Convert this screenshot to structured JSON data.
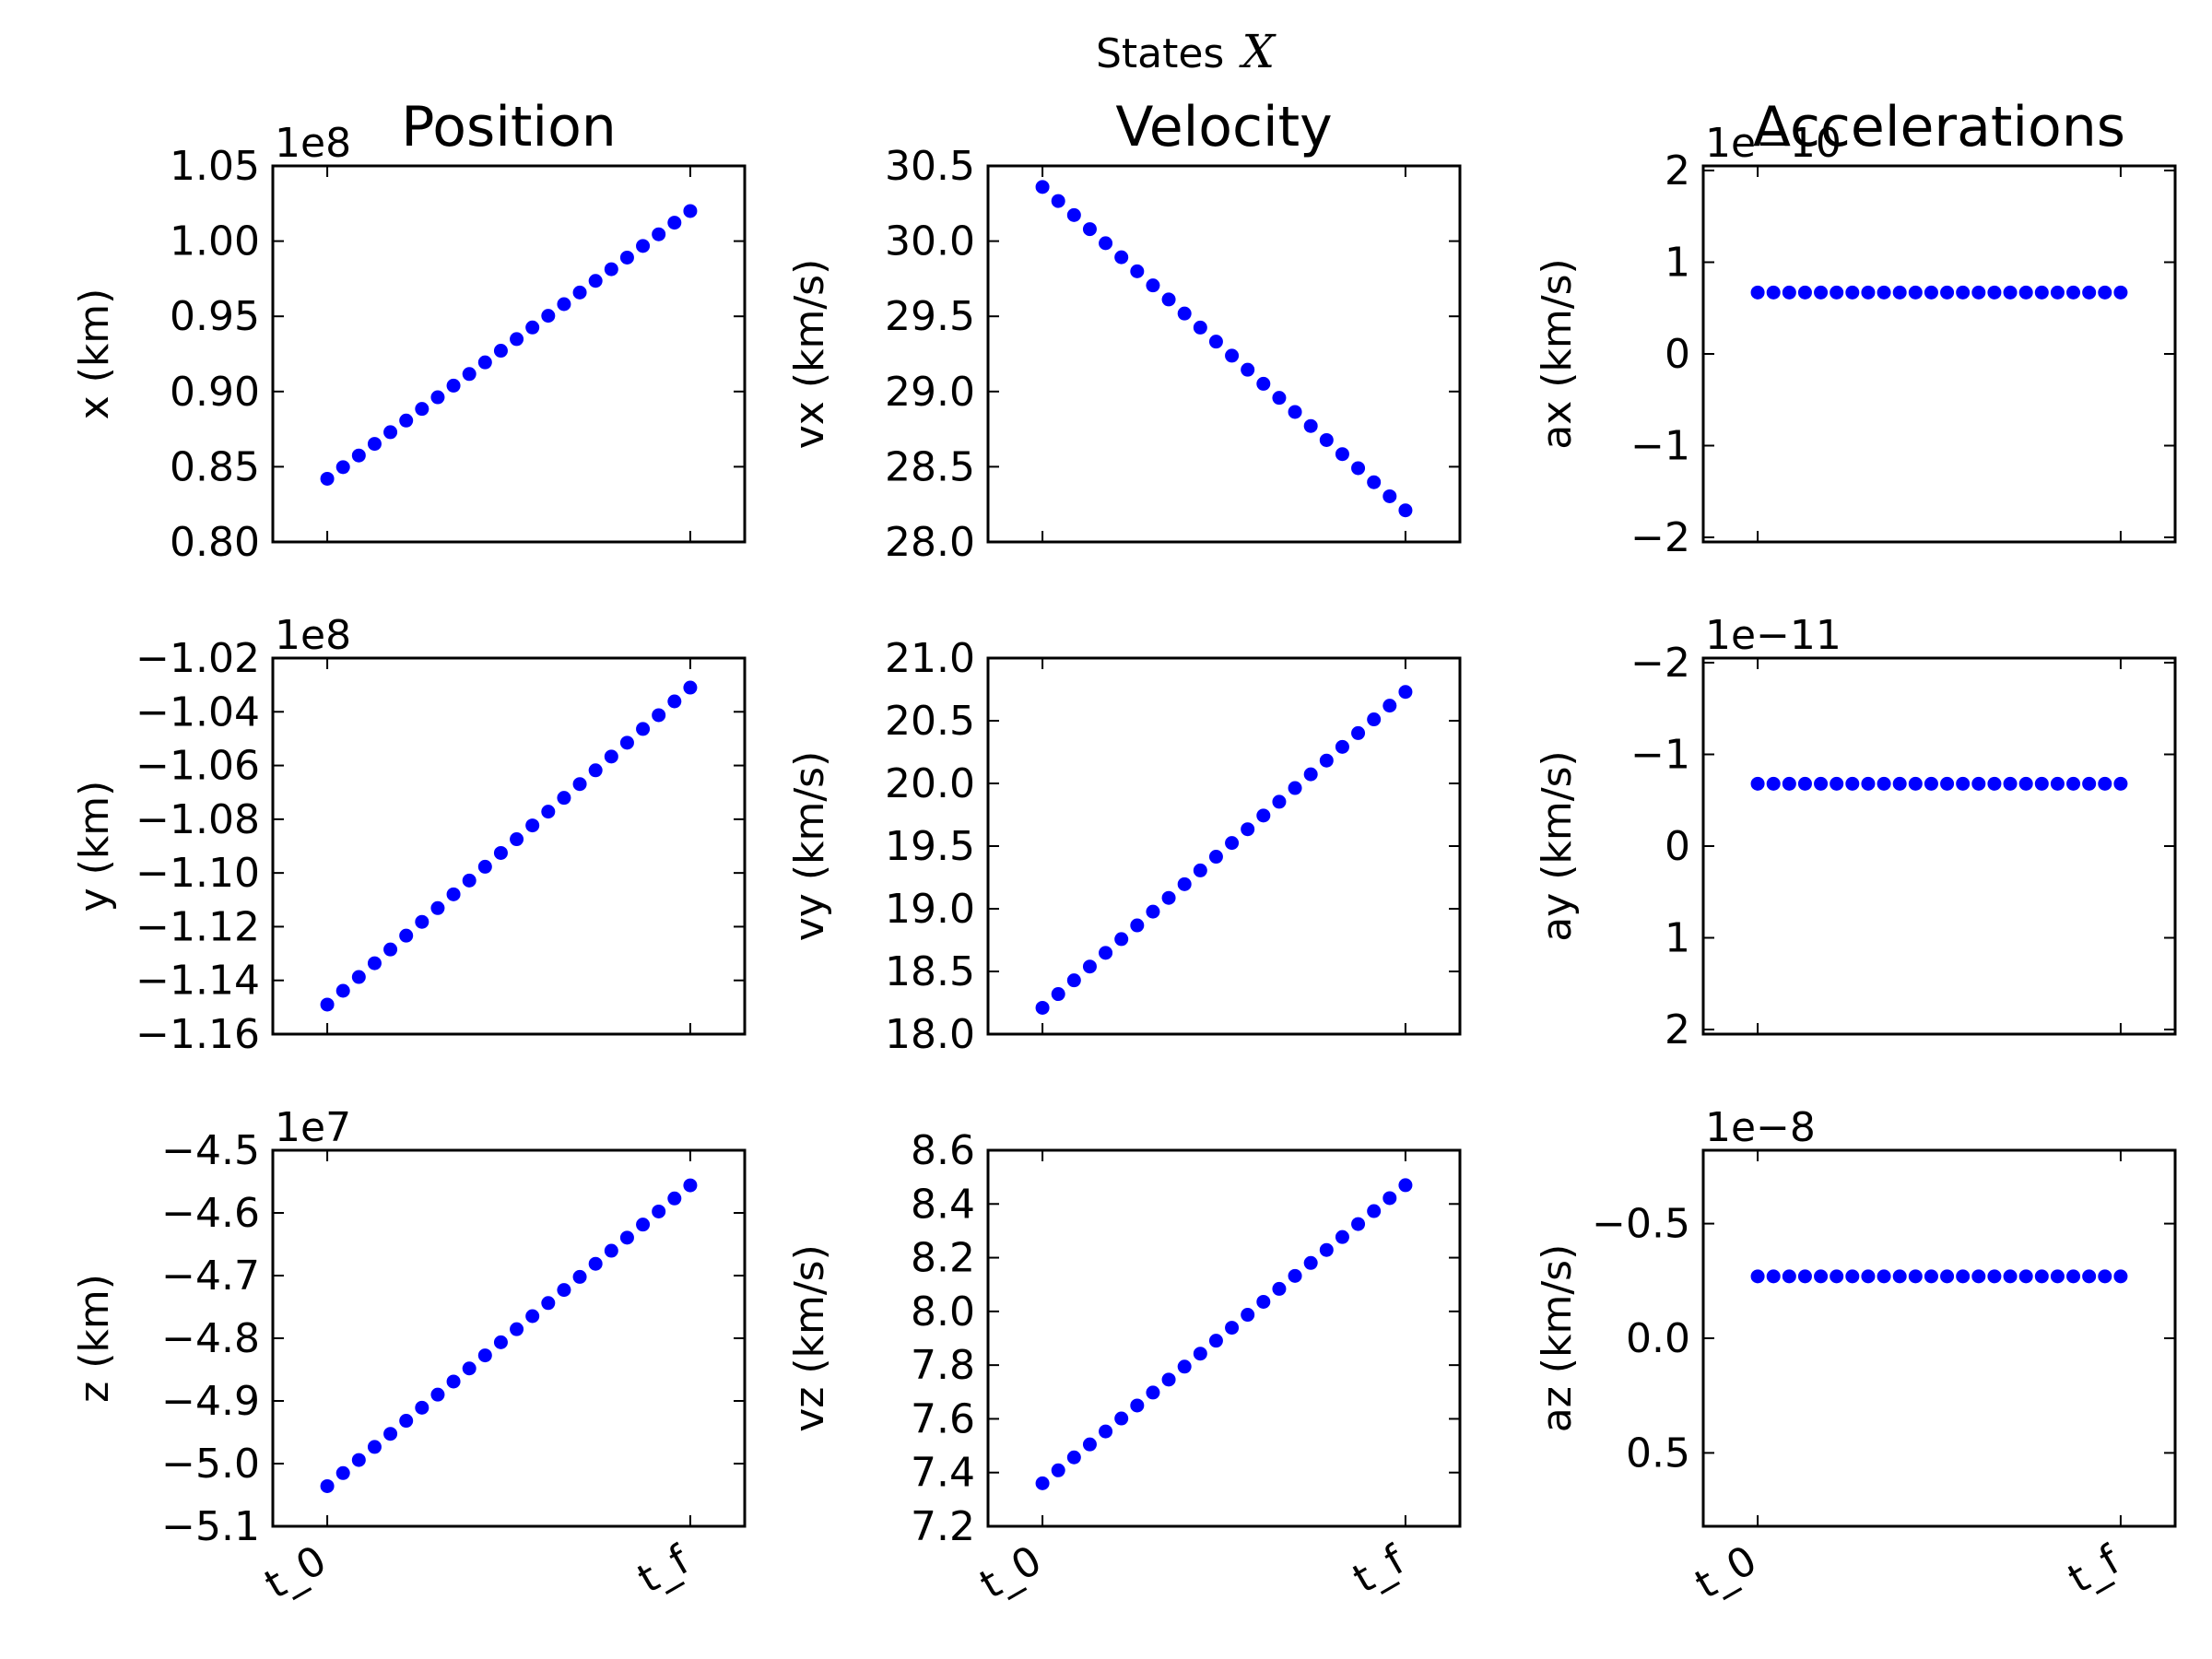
{
  "figure": {
    "suptitle": "States",
    "suptitle_math": "X",
    "column_titles": [
      "Position",
      "Velocity",
      "Accelerations"
    ]
  },
  "colors": {
    "points": "#0000ff",
    "axes": "#000000",
    "background": "#ffffff"
  },
  "chart_data": [
    {
      "type": "scatter",
      "ylabel": "x (km)",
      "offset_text": "1e8",
      "xticks": [
        "t_0",
        "t_f"
      ],
      "n_points": 24,
      "xlim": [
        -0.15,
        1.15
      ],
      "ylim": [
        0.8,
        1.05
      ],
      "yticks": [
        0.8,
        0.85,
        0.9,
        0.95,
        1.0,
        1.05
      ],
      "ytick_labels": [
        "0.80",
        "0.85",
        "0.90",
        "0.95",
        "1.00",
        "1.05"
      ],
      "y_start": 0.842,
      "y_end": 1.02
    },
    {
      "type": "scatter",
      "ylabel": "vx (km/s)",
      "offset_text": "",
      "xticks": [
        "t_0",
        "t_f"
      ],
      "n_points": 24,
      "xlim": [
        -0.15,
        1.15
      ],
      "ylim": [
        28.0,
        30.5
      ],
      "yticks": [
        28.0,
        28.5,
        29.0,
        29.5,
        30.0,
        30.5
      ],
      "ytick_labels": [
        "28.0",
        "28.5",
        "29.0",
        "29.5",
        "30.0",
        "30.5"
      ],
      "y_start": 30.36,
      "y_end": 28.21
    },
    {
      "type": "scatter",
      "ylabel": "ax (km/s)",
      "offset_text": "1e−10",
      "xticks": [
        "t_0",
        "t_f"
      ],
      "n_points": 24,
      "xlim": [
        -0.15,
        1.15
      ],
      "ylim": [
        -2.05,
        2.05
      ],
      "yticks": [
        -2,
        -1,
        0,
        1,
        2
      ],
      "ytick_labels": [
        "−2",
        "−1",
        "0",
        "1",
        "2"
      ],
      "y_start": 0.67,
      "y_end": 0.67
    },
    {
      "type": "scatter",
      "ylabel": "y (km)",
      "offset_text": "1e8",
      "xticks": [
        "t_0",
        "t_f"
      ],
      "n_points": 24,
      "xlim": [
        -0.15,
        1.15
      ],
      "ylim": [
        -1.16,
        -1.02
      ],
      "yticks": [
        -1.16,
        -1.14,
        -1.12,
        -1.1,
        -1.08,
        -1.06,
        -1.04,
        -1.02
      ],
      "ytick_labels": [
        "−1.16",
        "−1.14",
        "−1.12",
        "−1.10",
        "−1.08",
        "−1.06",
        "−1.04",
        "−1.02"
      ],
      "y_start": -1.149,
      "y_end": -1.031
    },
    {
      "type": "scatter",
      "ylabel": "vy (km/s)",
      "offset_text": "",
      "xticks": [
        "t_0",
        "t_f"
      ],
      "n_points": 24,
      "xlim": [
        -0.15,
        1.15
      ],
      "ylim": [
        18.0,
        21.0
      ],
      "yticks": [
        18.0,
        18.5,
        19.0,
        19.5,
        20.0,
        20.5,
        21.0
      ],
      "ytick_labels": [
        "18.0",
        "18.5",
        "19.0",
        "19.5",
        "20.0",
        "20.5",
        "21.0"
      ],
      "y_start": 18.21,
      "y_end": 20.73
    },
    {
      "type": "scatter",
      "ylabel": "ay (km/s)",
      "offset_text": "1e−11",
      "xticks": [
        "t_0",
        "t_f"
      ],
      "n_points": 24,
      "xlim": [
        -0.15,
        1.15
      ],
      "ylim": [
        2.05,
        -2.05
      ],
      "yticks": [
        -2,
        -1,
        0,
        1,
        2
      ],
      "ytick_labels": [
        "−2",
        "−1",
        "0",
        "1",
        "2"
      ],
      "y_start": -0.68,
      "y_end": -0.68
    },
    {
      "type": "scatter",
      "ylabel": "z (km)",
      "offset_text": "1e7",
      "xticks": [
        "t_0",
        "t_f"
      ],
      "n_points": 24,
      "xlim": [
        -0.15,
        1.15
      ],
      "ylim": [
        -5.1,
        -4.5
      ],
      "yticks": [
        -5.1,
        -5.0,
        -4.9,
        -4.8,
        -4.7,
        -4.6,
        -4.5
      ],
      "ytick_labels": [
        "−5.1",
        "−5.0",
        "−4.9",
        "−4.8",
        "−4.7",
        "−4.6",
        "−4.5"
      ],
      "y_start": -5.036,
      "y_end": -4.556
    },
    {
      "type": "scatter",
      "ylabel": "vz (km/s)",
      "offset_text": "",
      "xticks": [
        "t_0",
        "t_f"
      ],
      "n_points": 24,
      "xlim": [
        -0.15,
        1.15
      ],
      "ylim": [
        7.2,
        8.6
      ],
      "yticks": [
        7.2,
        7.4,
        7.6,
        7.8,
        8.0,
        8.2,
        8.4,
        8.6
      ],
      "ytick_labels": [
        "7.2",
        "7.4",
        "7.6",
        "7.8",
        "8.0",
        "8.2",
        "8.4",
        "8.6"
      ],
      "y_start": 7.36,
      "y_end": 8.47
    },
    {
      "type": "scatter",
      "ylabel": "az (km/s)",
      "offset_text": "1e−8",
      "xticks": [
        "t_0",
        "t_f"
      ],
      "n_points": 24,
      "xlim": [
        -0.15,
        1.15
      ],
      "ylim": [
        0.82,
        -0.82
      ],
      "yticks": [
        -0.5,
        0.0,
        0.5
      ],
      "ytick_labels": [
        "−0.5",
        "0.0",
        "0.5"
      ],
      "y_start": -0.27,
      "y_end": -0.27
    }
  ]
}
